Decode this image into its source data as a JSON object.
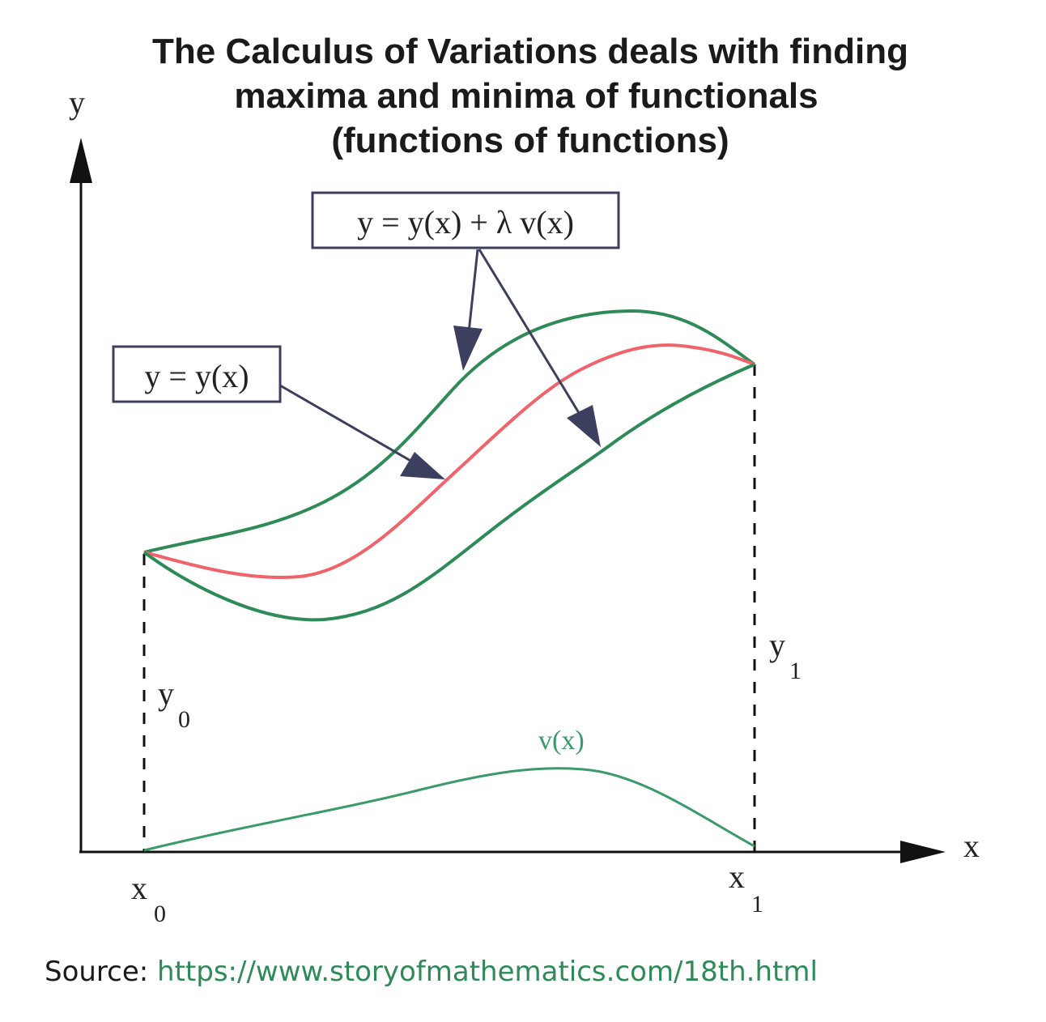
{
  "title": {
    "line1": "The Calculus of Variations deals with finding",
    "line2": "maxima and minima of functionals",
    "line3": "(functions of functions)"
  },
  "axes": {
    "x_label": "x",
    "y_label": "y",
    "x0_main": "x",
    "x0_sub": "0",
    "x1_main": "x",
    "x1_sub": "1",
    "y0_main": "y",
    "y0_sub": "0",
    "y1_main": "y",
    "y1_sub": "1"
  },
  "labels": {
    "variation_box": "y = y(x) +  λ v(x)",
    "function_box": "y = y(x)",
    "v_curve": "v(x)"
  },
  "colors": {
    "extremal": "#f0636b",
    "varied": "#2e8b57",
    "v_curve": "#3a9a6a",
    "axis": "#111111",
    "arrow": "#3c3f5e"
  },
  "source": {
    "prefix": "Source: ",
    "url": "https://www.storyofmathematics.com/18th.html"
  }
}
